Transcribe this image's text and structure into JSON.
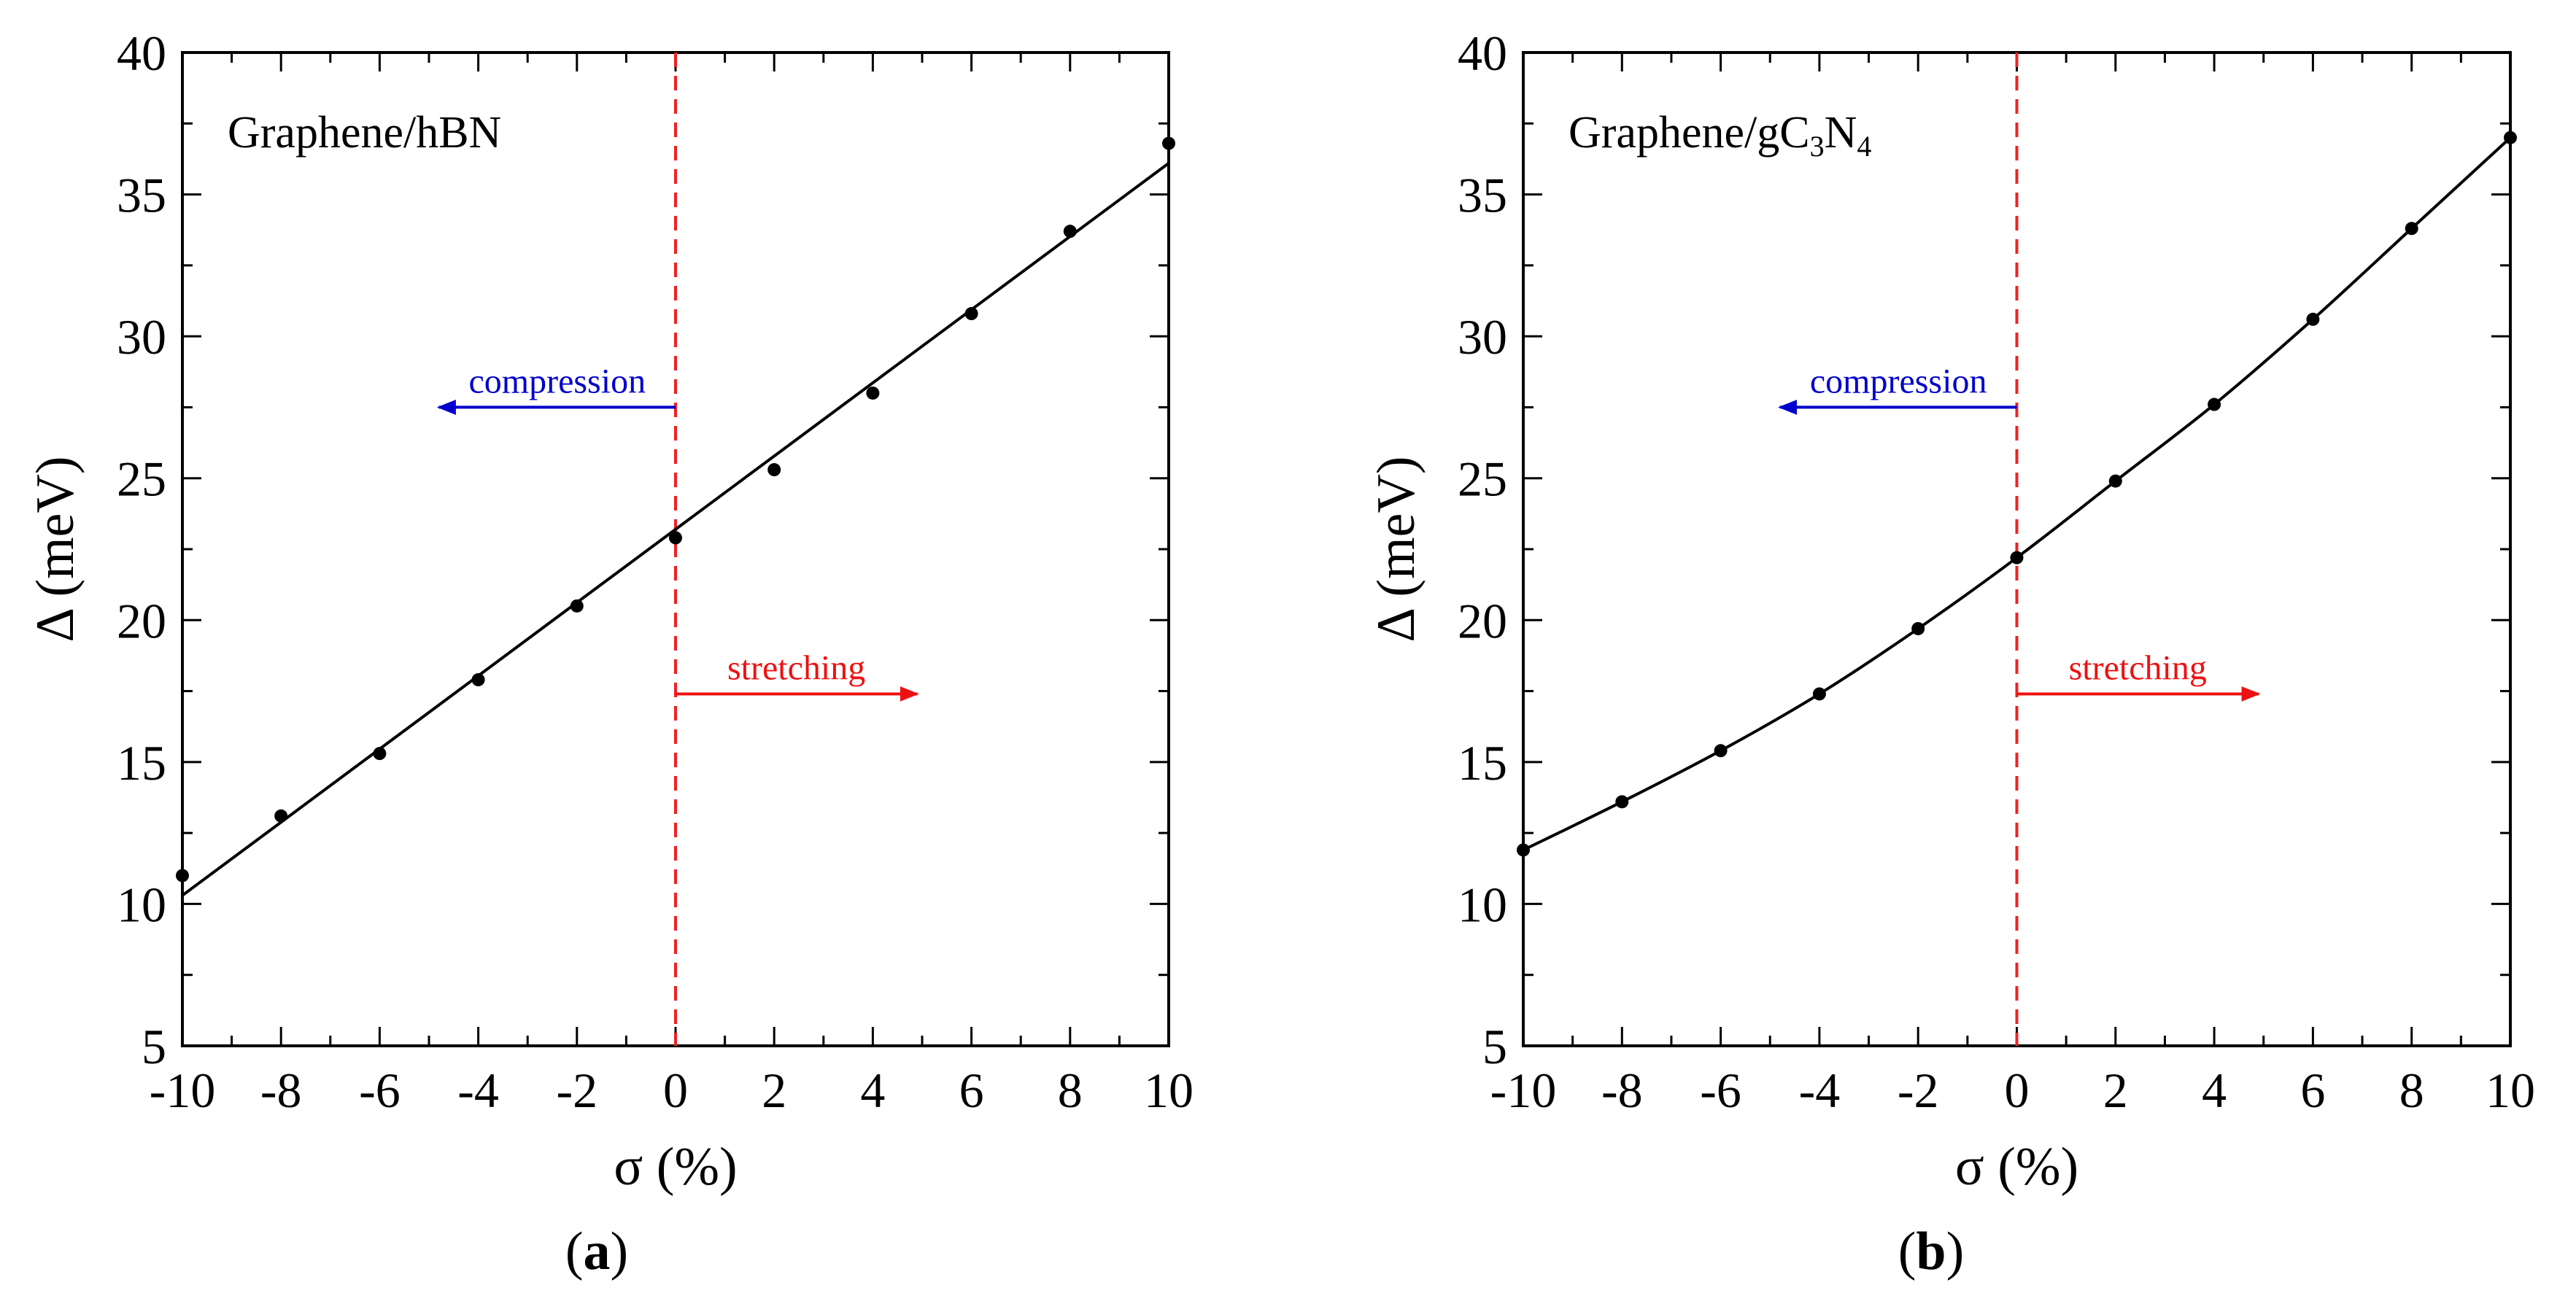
{
  "chart_data": [
    {
      "type": "scatter",
      "panel_caption": "(a)",
      "panel_caption_letter": "a",
      "label": "Graphene/hBN",
      "xlabel": "σ (%)",
      "ylabel": "Δ (meV)",
      "xlim": [
        -10,
        10
      ],
      "ylim": [
        5,
        40
      ],
      "xticks": [
        -10,
        -8,
        -6,
        -4,
        -2,
        0,
        2,
        4,
        6,
        8,
        10
      ],
      "yticks": [
        5,
        10,
        15,
        20,
        25,
        30,
        35,
        40
      ],
      "x_tick_labels": [
        "-10",
        "-8",
        "-6",
        "-4",
        "-2",
        "0",
        "2",
        "4",
        "6",
        "8",
        "10"
      ],
      "y_tick_labels": [
        "5",
        "10",
        "15",
        "20",
        "25",
        "30",
        "35",
        "40"
      ],
      "grid": false,
      "points": {
        "x": [
          -10,
          -8,
          -6,
          -4,
          -2,
          0,
          2,
          4,
          6,
          8,
          10
        ],
        "y": [
          11.0,
          13.1,
          15.3,
          17.9,
          20.5,
          22.9,
          25.3,
          28.0,
          30.8,
          33.7,
          36.8
        ]
      },
      "fit_line": {
        "x": [
          -10,
          10
        ],
        "y": [
          10.3,
          36.1
        ]
      },
      "vertical_line_x": 0,
      "annotations": [
        {
          "text": "compression",
          "direction": "left",
          "color": "#0000cc",
          "y": 27.5,
          "from_x": 0,
          "to_x": -4.8
        },
        {
          "text": "stretching",
          "direction": "right",
          "color": "#ee1111",
          "y": 17.4,
          "from_x": 0,
          "to_x": 4.9
        }
      ],
      "colors": {
        "points": "#000000",
        "fit": "#000000",
        "vline": "#ee2222"
      }
    },
    {
      "type": "scatter",
      "panel_caption": "(b)",
      "panel_caption_letter": "b",
      "label": "Graphene/gC3N4",
      "label_parts": [
        "Graphene/gC",
        "3",
        "N",
        "4"
      ],
      "xlabel": "σ (%)",
      "ylabel": "Δ (meV)",
      "xlim": [
        -10,
        10
      ],
      "ylim": [
        5,
        40
      ],
      "xticks": [
        -10,
        -8,
        -6,
        -4,
        -2,
        0,
        2,
        4,
        6,
        8,
        10
      ],
      "yticks": [
        5,
        10,
        15,
        20,
        25,
        30,
        35,
        40
      ],
      "x_tick_labels": [
        "-10",
        "-8",
        "-6",
        "-4",
        "-2",
        "0",
        "2",
        "4",
        "6",
        "8",
        "10"
      ],
      "y_tick_labels": [
        "5",
        "10",
        "15",
        "20",
        "25",
        "30",
        "35",
        "40"
      ],
      "grid": false,
      "points": {
        "x": [
          -10,
          -8,
          -6,
          -4,
          -2,
          0,
          2,
          4,
          6,
          8,
          10
        ],
        "y": [
          11.9,
          13.6,
          15.4,
          17.4,
          19.7,
          22.2,
          24.9,
          27.6,
          30.6,
          33.8,
          37.0
        ]
      },
      "fit_line": {
        "x": [
          -10,
          -8,
          -6,
          -4,
          -2,
          0,
          2,
          4,
          6,
          8,
          10
        ],
        "y": [
          11.9,
          13.6,
          15.4,
          17.4,
          19.7,
          22.2,
          24.9,
          27.6,
          30.6,
          33.8,
          37.0
        ]
      },
      "vertical_line_x": 0,
      "annotations": [
        {
          "text": "compression",
          "direction": "left",
          "color": "#0000cc",
          "y": 27.5,
          "from_x": 0,
          "to_x": -4.8
        },
        {
          "text": "stretching",
          "direction": "right",
          "color": "#ee1111",
          "y": 17.4,
          "from_x": 0,
          "to_x": 4.9
        }
      ],
      "colors": {
        "points": "#000000",
        "fit": "#000000",
        "vline": "#ee2222"
      }
    }
  ]
}
